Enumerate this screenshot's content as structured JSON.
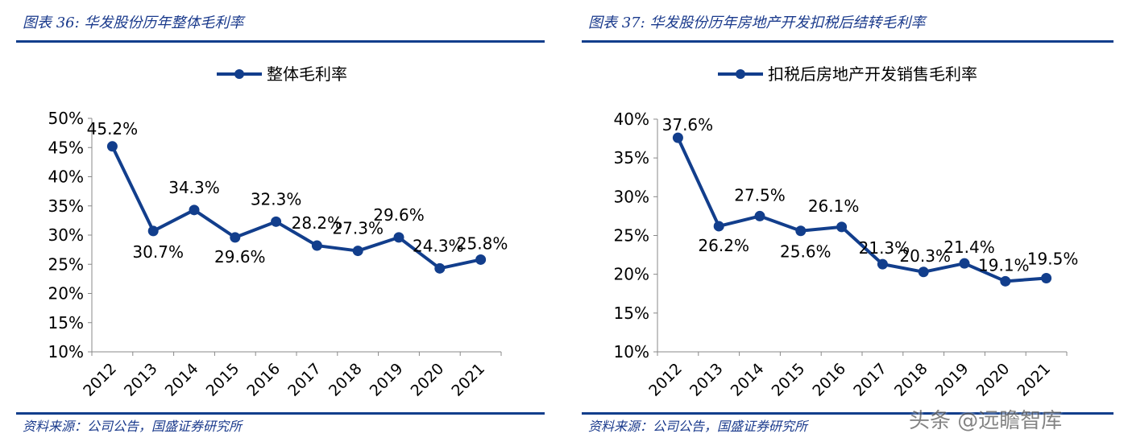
{
  "panels": [
    {
      "title": "图表 36:  华发股份历年整体毛利率",
      "source": "资料来源：公司公告，国盛证券研究所"
    },
    {
      "title": "图表 37:  华发股份历年房地产开发扣税后结转毛利率",
      "source": "资料来源：公司公告，国盛证券研究所"
    }
  ],
  "watermark": "头条 @远瞻智库",
  "colors": {
    "series": "#123e8c",
    "rule": "#123e8c",
    "title": "#1a3a8c"
  },
  "chart_data": [
    {
      "type": "line",
      "categories": [
        "2012",
        "2013",
        "2014",
        "2015",
        "2016",
        "2017",
        "2018",
        "2019",
        "2020",
        "2021"
      ],
      "series": [
        {
          "name": "整体毛利率",
          "values": [
            45.2,
            30.7,
            34.3,
            29.6,
            32.3,
            28.2,
            27.3,
            29.6,
            24.3,
            25.8
          ]
        }
      ],
      "data_labels": [
        "45.2%",
        "30.7%",
        "34.3%",
        "29.6%",
        "32.3%",
        "28.2%",
        "27.3%",
        "29.6%",
        "24.3%",
        "25.8%"
      ],
      "yticks": [
        10,
        15,
        20,
        25,
        30,
        35,
        40,
        45,
        50
      ],
      "ytick_labels": [
        "10%",
        "15%",
        "20%",
        "25%",
        "30%",
        "35%",
        "40%",
        "45%",
        "50%"
      ],
      "ylim": [
        10,
        50
      ],
      "legend": "top-center",
      "grid": false
    },
    {
      "type": "line",
      "categories": [
        "2012",
        "2013",
        "2014",
        "2015",
        "2016",
        "2017",
        "2018",
        "2019",
        "2020",
        "2021"
      ],
      "series": [
        {
          "name": "扣税后房地产开发销售毛利率",
          "values": [
            37.6,
            26.2,
            27.5,
            25.6,
            26.1,
            21.3,
            20.3,
            21.4,
            19.1,
            19.5
          ]
        }
      ],
      "data_labels": [
        "37.6%",
        "26.2%",
        "27.5%",
        "25.6%",
        "26.1%",
        "21.3%",
        "20.3%",
        "21.4%",
        "19.1%",
        "19.5%"
      ],
      "yticks": [
        10,
        15,
        20,
        25,
        30,
        35,
        40
      ],
      "ytick_labels": [
        "10%",
        "15%",
        "20%",
        "25%",
        "30%",
        "35%",
        "40%"
      ],
      "ylim": [
        10,
        40
      ],
      "legend": "top-center",
      "grid": false
    }
  ]
}
